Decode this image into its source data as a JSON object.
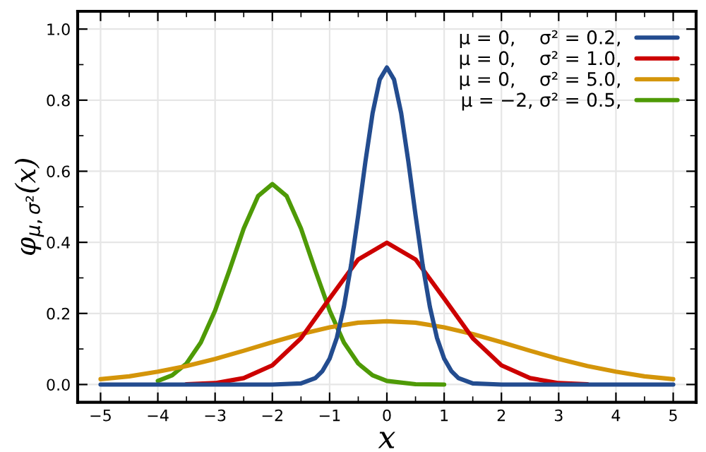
{
  "chart_data": {
    "type": "line",
    "xlabel": "x",
    "ylabel": "φ$_{μ,σ²}$(x)",
    "xlim": [
      -5.4,
      5.4
    ],
    "ylim": [
      -0.05,
      1.05
    ],
    "xticks": [
      {
        "value": -5,
        "label": "−5"
      },
      {
        "value": -4,
        "label": "−4"
      },
      {
        "value": -3,
        "label": "−3"
      },
      {
        "value": -2,
        "label": "−2"
      },
      {
        "value": -1,
        "label": "−1"
      },
      0,
      1,
      2,
      3,
      4,
      5
    ],
    "yticks": [
      {
        "value": 0,
        "label": "0.0"
      },
      0.2,
      0.4,
      0.6,
      0.8,
      {
        "value": 1,
        "label": "1.0"
      }
    ],
    "grid": true,
    "legend": "top right",
    "line_style": "solid",
    "marker": "none",
    "series": [
      {
        "name": "μ = 0,    σ² = 0.2,",
        "color": "#234c8f",
        "x": [
          -5,
          -4,
          -3,
          -2,
          -1.5,
          -1.25,
          -1.125,
          -1,
          -0.875,
          -0.75,
          -0.625,
          -0.5,
          -0.375,
          -0.25,
          -0.125,
          0,
          0.125,
          0.25,
          0.375,
          0.5,
          0.625,
          0.75,
          0.875,
          1,
          1.125,
          1.25,
          1.5,
          2,
          3,
          4,
          5
        ],
        "values": [
          0,
          0,
          0,
          0,
          0.003,
          0.018,
          0.038,
          0.073,
          0.131,
          0.219,
          0.336,
          0.477,
          0.627,
          0.763,
          0.858,
          0.892,
          0.858,
          0.763,
          0.627,
          0.477,
          0.336,
          0.219,
          0.131,
          0.073,
          0.038,
          0.018,
          0.003,
          0,
          0,
          0,
          0
        ]
      },
      {
        "name": "μ = 0,    σ² = 1.0,",
        "color": "#cc0000",
        "x": [
          -3.5,
          -3,
          -2.5,
          -2,
          -1.5,
          -1,
          -0.5,
          0,
          0.5,
          1,
          1.5,
          2,
          2.5,
          3,
          3.5
        ],
        "values": [
          0.001,
          0.004,
          0.018,
          0.054,
          0.13,
          0.242,
          0.352,
          0.399,
          0.352,
          0.242,
          0.13,
          0.054,
          0.018,
          0.004,
          0.001
        ]
      },
      {
        "name": "μ = 0,    σ² = 5.0,",
        "color": "#d4950a",
        "x": [
          -5,
          -4.5,
          -4,
          -3.5,
          -3,
          -2.5,
          -2,
          -1.5,
          -1,
          -0.5,
          0,
          0.5,
          1,
          1.5,
          2,
          2.5,
          3,
          3.5,
          4,
          4.5,
          5
        ],
        "values": [
          0.015,
          0.023,
          0.036,
          0.052,
          0.072,
          0.095,
          0.119,
          0.142,
          0.161,
          0.174,
          0.178,
          0.174,
          0.161,
          0.142,
          0.119,
          0.095,
          0.072,
          0.052,
          0.036,
          0.023,
          0.015
        ]
      },
      {
        "name": "μ = −2, σ² = 0.5,",
        "color": "#4e9a06",
        "x": [
          -4,
          -3.75,
          -3.5,
          -3.25,
          -3,
          -2.75,
          -2.5,
          -2.25,
          -2,
          -1.75,
          -1.5,
          -1.25,
          -1,
          -0.75,
          -0.5,
          -0.25,
          0,
          0.5,
          1
        ],
        "values": [
          0.01,
          0.026,
          0.059,
          0.118,
          0.208,
          0.321,
          0.439,
          0.53,
          0.564,
          0.53,
          0.439,
          0.321,
          0.208,
          0.118,
          0.059,
          0.026,
          0.01,
          0.001,
          0
        ]
      }
    ]
  }
}
